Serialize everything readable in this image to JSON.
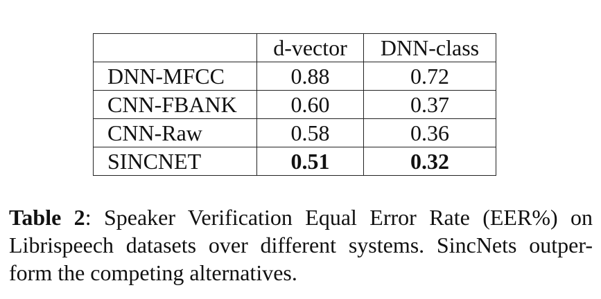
{
  "table": {
    "header": [
      "",
      "d-vector",
      "DNN-class"
    ],
    "rows": [
      {
        "system": "DNN-MFCC",
        "d_vector": "0.88",
        "dnn_class": "0.72"
      },
      {
        "system": "CNN-FBANK",
        "d_vector": "0.60",
        "dnn_class": "0.37"
      },
      {
        "system": "CNN-Raw",
        "d_vector": "0.58",
        "dnn_class": "0.36"
      },
      {
        "system": "SINCNET",
        "d_vector": "0.51",
        "dnn_class": "0.32"
      }
    ]
  },
  "caption": {
    "label": "Table 2",
    "separator": ":",
    "line1": "Speaker Verification Equal Error Rate (EER%) on",
    "line2": "Librispeech datasets over different systems. SincNets outper-",
    "line3": "form the competing alternatives."
  }
}
